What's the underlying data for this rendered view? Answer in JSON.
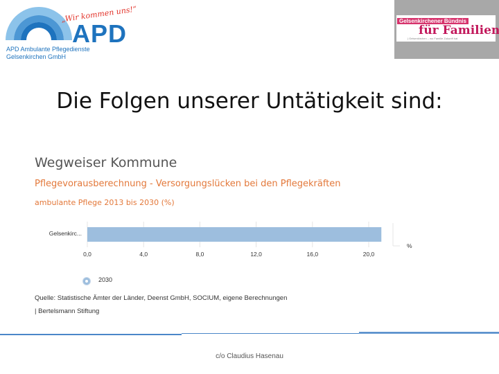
{
  "header": {
    "apd_logo": {
      "slogan": "„Wir kommen uns!“",
      "word": "APD",
      "line1": "APD Ambulante Pflegedienste",
      "line2": "Gelsenkirchen GmbH"
    },
    "gfb_logo": {
      "line1": "Gelsenkirchener Bündnis",
      "line2": "für Familien",
      "line3": "| Gelsenkirchen – wo Familie Zukunft hat"
    }
  },
  "slide_title": "Die Folgen unserer Untätigkeit sind:",
  "chart": {
    "title": "Wegweiser Kommune",
    "subtitle": "Pflegevorausberechnung - Versorgungslücken bei den Pflegekräften",
    "subtitle2": "ambulante Pflege 2013 bis 2030 (%)",
    "source1": "Quelle: Statistische Ämter der Länder, Deenst GmbH, SOCIUM, eigene Berechnungen",
    "source2": "| Bertelsmann Stiftung"
  },
  "chart_data": {
    "type": "bar",
    "orientation": "horizontal",
    "categories": [
      "Gelsenkirc..."
    ],
    "series": [
      {
        "name": "2030",
        "values": [
          20.9
        ]
      }
    ],
    "x_ticks": [
      "0,0",
      "4,0",
      "8,0",
      "12,0",
      "16,0",
      "20,0"
    ],
    "xlim": [
      0,
      22.4
    ],
    "unit": "%",
    "grid": true,
    "legend": "bottom-left"
  },
  "colors": {
    "bar": "#9dbede",
    "accent": "#e3783a",
    "apd_blue": "#1e73be",
    "footer_line": "#4a86c8"
  },
  "footer": {
    "text": "c/o Claudius Hasenau"
  }
}
